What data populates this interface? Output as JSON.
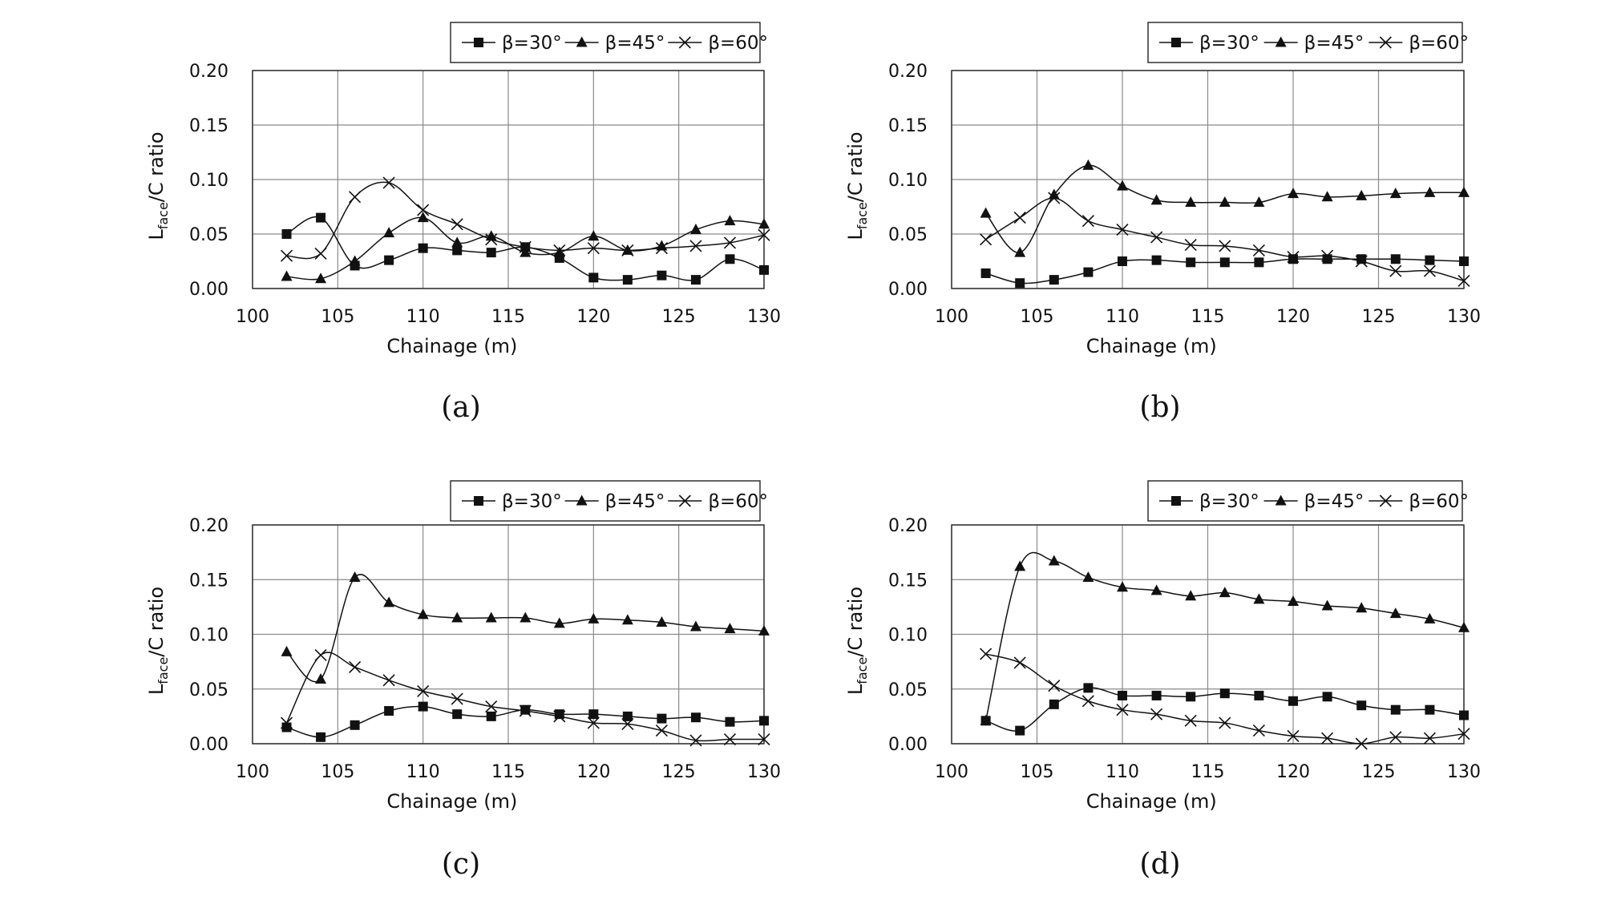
{
  "figure": {
    "captions": [
      "(a)",
      "(b)",
      "(c)",
      "(d)"
    ]
  },
  "chart_data": [
    {
      "type": "line",
      "panel": "(a)",
      "xlabel": "Chainage (m)",
      "ylabel_main": "L",
      "ylabel_sub": "face",
      "ylabel_rest": "/C ratio",
      "xlim": [
        100,
        130
      ],
      "ylim": [
        0.0,
        0.2
      ],
      "xticks": [
        100,
        105,
        110,
        115,
        120,
        125,
        130
      ],
      "xtick_labels": [
        "100",
        "105",
        "110",
        "115",
        "120",
        "125",
        "130"
      ],
      "yticks": [
        0.0,
        0.05,
        0.1,
        0.15,
        0.2
      ],
      "ytick_labels": [
        "0.00",
        "0.05",
        "0.10",
        "0.15",
        "0.20"
      ],
      "grid": true,
      "legend_position": "top-right",
      "x": [
        102,
        104,
        106,
        108,
        110,
        112,
        114,
        116,
        118,
        120,
        122,
        124,
        126,
        128,
        130
      ],
      "series": [
        {
          "name": "β=30°",
          "marker": "square",
          "values": [
            0.05,
            0.065,
            0.021,
            0.026,
            0.037,
            0.035,
            0.033,
            0.038,
            0.028,
            0.01,
            0.008,
            0.012,
            0.008,
            0.027,
            0.017
          ]
        },
        {
          "name": "β=45°",
          "marker": "triangle",
          "values": [
            0.011,
            0.009,
            0.025,
            0.051,
            0.065,
            0.042,
            0.048,
            0.033,
            0.033,
            0.048,
            0.035,
            0.039,
            0.054,
            0.062,
            0.059
          ]
        },
        {
          "name": "β=60°",
          "marker": "cross",
          "values": [
            0.03,
            0.032,
            0.084,
            0.097,
            0.072,
            0.059,
            0.045,
            0.038,
            0.035,
            0.037,
            0.035,
            0.037,
            0.039,
            0.042,
            0.049
          ]
        }
      ]
    },
    {
      "type": "line",
      "panel": "(b)",
      "xlabel": "Chainage (m)",
      "ylabel_main": "L",
      "ylabel_sub": "face",
      "ylabel_rest": "/C ratio",
      "xlim": [
        100,
        130
      ],
      "ylim": [
        0.0,
        0.2
      ],
      "xticks": [
        100,
        105,
        110,
        115,
        120,
        125,
        130
      ],
      "xtick_labels": [
        "100",
        "105",
        "110",
        "115",
        "120",
        "125",
        "130"
      ],
      "yticks": [
        0.0,
        0.05,
        0.1,
        0.15,
        0.2
      ],
      "ytick_labels": [
        "0.00",
        "0.05",
        "0.10",
        "0.15",
        "0.20"
      ],
      "grid": true,
      "legend_position": "top-right",
      "x": [
        102,
        104,
        106,
        108,
        110,
        112,
        114,
        116,
        118,
        120,
        122,
        124,
        126,
        128,
        130
      ],
      "series": [
        {
          "name": "β=30°",
          "marker": "square",
          "values": [
            0.014,
            0.005,
            0.008,
            0.015,
            0.025,
            0.026,
            0.024,
            0.024,
            0.024,
            0.027,
            0.027,
            0.027,
            0.027,
            0.026,
            0.025
          ]
        },
        {
          "name": "β=45°",
          "marker": "triangle",
          "values": [
            0.069,
            0.033,
            0.086,
            0.113,
            0.094,
            0.081,
            0.079,
            0.079,
            0.079,
            0.087,
            0.084,
            0.085,
            0.087,
            0.088,
            0.088
          ]
        },
        {
          "name": "β=60°",
          "marker": "cross",
          "values": [
            0.045,
            0.065,
            0.083,
            0.062,
            0.054,
            0.047,
            0.04,
            0.039,
            0.035,
            0.029,
            0.03,
            0.025,
            0.016,
            0.016,
            0.007
          ]
        }
      ]
    },
    {
      "type": "line",
      "panel": "(c)",
      "xlabel": "Chainage (m)",
      "ylabel_main": "L",
      "ylabel_sub": "face",
      "ylabel_rest": "/C ratio",
      "xlim": [
        100,
        130
      ],
      "ylim": [
        0.0,
        0.2
      ],
      "xticks": [
        100,
        105,
        110,
        115,
        120,
        125,
        130
      ],
      "xtick_labels": [
        "100",
        "105",
        "110",
        "115",
        "120",
        "125",
        "130"
      ],
      "yticks": [
        0.0,
        0.05,
        0.1,
        0.15,
        0.2
      ],
      "ytick_labels": [
        "0.00",
        "0.05",
        "0.10",
        "0.15",
        "0.20"
      ],
      "grid": true,
      "legend_position": "top-right",
      "x": [
        102,
        104,
        106,
        108,
        110,
        112,
        114,
        116,
        118,
        120,
        122,
        124,
        126,
        128,
        130
      ],
      "series": [
        {
          "name": "β=30°",
          "marker": "square",
          "values": [
            0.015,
            0.006,
            0.017,
            0.03,
            0.034,
            0.027,
            0.025,
            0.031,
            0.027,
            0.027,
            0.025,
            0.023,
            0.024,
            0.02,
            0.021
          ]
        },
        {
          "name": "β=45°",
          "marker": "triangle",
          "values": [
            0.084,
            0.059,
            0.152,
            0.129,
            0.118,
            0.115,
            0.115,
            0.115,
            0.11,
            0.114,
            0.113,
            0.111,
            0.107,
            0.105,
            0.103
          ]
        },
        {
          "name": "β=60°",
          "marker": "cross",
          "values": [
            0.019,
            0.081,
            0.07,
            0.058,
            0.048,
            0.041,
            0.034,
            0.03,
            0.025,
            0.019,
            0.018,
            0.012,
            0.003,
            0.004,
            0.004
          ]
        }
      ]
    },
    {
      "type": "line",
      "panel": "(d)",
      "xlabel": "Chainage (m)",
      "ylabel_main": "L",
      "ylabel_sub": "face",
      "ylabel_rest": "/C ratio",
      "xlim": [
        100,
        130
      ],
      "ylim": [
        0.0,
        0.2
      ],
      "xticks": [
        100,
        105,
        110,
        115,
        120,
        125,
        130
      ],
      "xtick_labels": [
        "100",
        "105",
        "110",
        "115",
        "120",
        "125",
        "130"
      ],
      "yticks": [
        0.0,
        0.05,
        0.1,
        0.15,
        0.2
      ],
      "ytick_labels": [
        "0.00",
        "0.05",
        "0.10",
        "0.15",
        "0.20"
      ],
      "grid": true,
      "legend_position": "top-right",
      "x": [
        102,
        104,
        106,
        108,
        110,
        112,
        114,
        116,
        118,
        120,
        122,
        124,
        126,
        128,
        130
      ],
      "series": [
        {
          "name": "β=30°",
          "marker": "square",
          "values": [
            0.021,
            0.012,
            0.036,
            0.051,
            0.044,
            0.044,
            0.043,
            0.046,
            0.044,
            0.039,
            0.043,
            0.035,
            0.031,
            0.031,
            0.026
          ]
        },
        {
          "name": "β=45°",
          "marker": "triangle",
          "values": [
            0.021,
            0.162,
            0.167,
            0.152,
            0.143,
            0.14,
            0.135,
            0.138,
            0.132,
            0.13,
            0.126,
            0.124,
            0.119,
            0.114,
            0.106
          ]
        },
        {
          "name": "β=60°",
          "marker": "cross",
          "values": [
            0.082,
            0.074,
            0.053,
            0.039,
            0.031,
            0.027,
            0.021,
            0.019,
            0.012,
            0.007,
            0.005,
            0.0,
            0.006,
            0.005,
            0.009
          ]
        }
      ]
    }
  ]
}
